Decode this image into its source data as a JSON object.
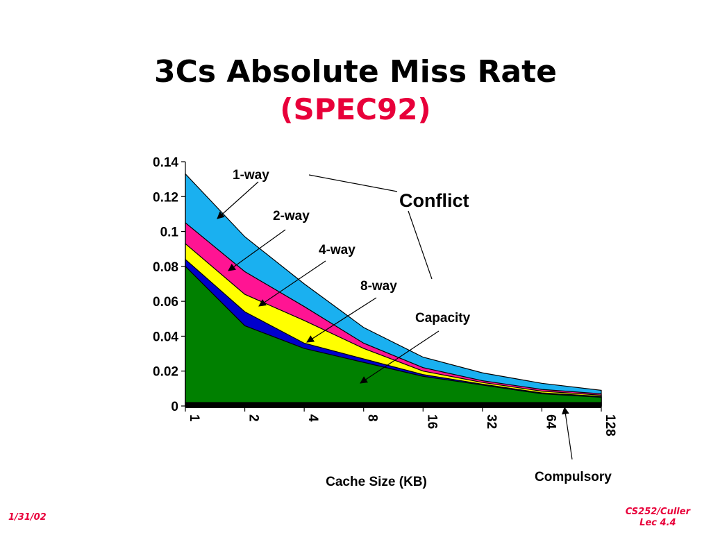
{
  "slide": {
    "title": "3Cs Absolute Miss Rate",
    "subtitle": "(SPEC92)",
    "date": "1/31/02",
    "course": "CS252/Culler",
    "lecture": "Lec 4.4"
  },
  "chart_data": {
    "type": "area",
    "stacked": true,
    "xlabel": "Cache Size (KB)",
    "ylabel": "",
    "categories": [
      "1",
      "2",
      "4",
      "8",
      "16",
      "32",
      "64",
      "128"
    ],
    "ylim": [
      0,
      0.14
    ],
    "yticks": [
      0,
      0.02,
      0.04,
      0.06,
      0.08,
      0.1,
      0.12,
      0.14
    ],
    "ytick_labels": [
      "0",
      "0.02",
      "0.04",
      "0.06",
      "0.08",
      "0.1",
      "0.12",
      "0.14"
    ],
    "series": [
      {
        "name": "Compulsory",
        "color": "#000000",
        "values": [
          0.002,
          0.002,
          0.002,
          0.002,
          0.002,
          0.002,
          0.002,
          0.002
        ]
      },
      {
        "name": "Capacity",
        "color": "#008000",
        "values": [
          0.08,
          0.046,
          0.033,
          0.025,
          0.017,
          0.012,
          0.007,
          0.005
        ]
      },
      {
        "name": "8-way",
        "color": "#0000cc",
        "values": [
          0.084,
          0.054,
          0.036,
          0.027,
          0.018,
          0.0125,
          0.0075,
          0.0055
        ]
      },
      {
        "name": "4-way",
        "color": "#ffff00",
        "values": [
          0.093,
          0.064,
          0.049,
          0.033,
          0.02,
          0.0135,
          0.0085,
          0.0062
        ]
      },
      {
        "name": "2-way",
        "color": "#ff1493",
        "values": [
          0.105,
          0.077,
          0.057,
          0.036,
          0.022,
          0.0145,
          0.0095,
          0.007
        ]
      },
      {
        "name": "1-way",
        "color": "#1ab0f0",
        "values": [
          0.133,
          0.097,
          0.07,
          0.045,
          0.028,
          0.019,
          0.013,
          0.009
        ]
      }
    ],
    "annotations": [
      {
        "text": "Conflict"
      },
      {
        "text": "1-way"
      },
      {
        "text": "2-way"
      },
      {
        "text": "4-way"
      },
      {
        "text": "8-way"
      },
      {
        "text": "Capacity"
      },
      {
        "text": "Compulsory"
      }
    ]
  }
}
